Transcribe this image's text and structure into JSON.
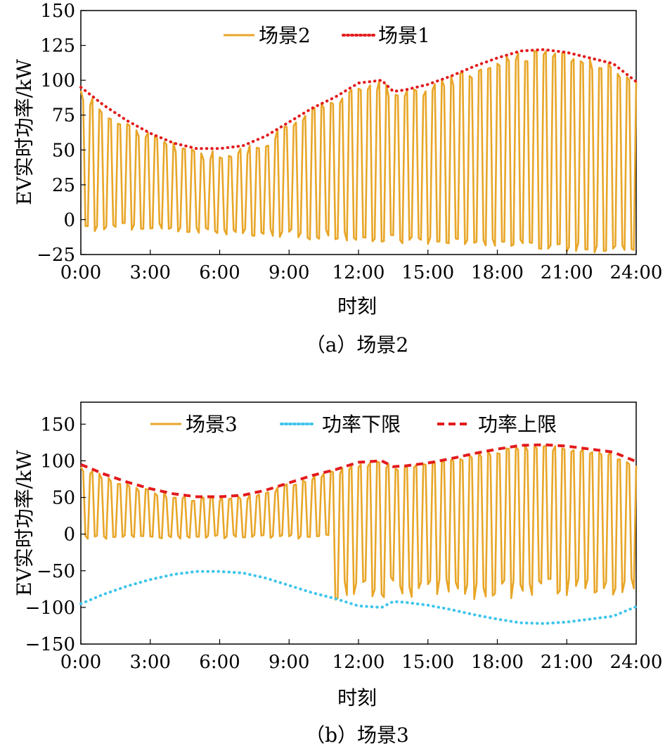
{
  "colors": {
    "orange": "#E8A628",
    "red": "#E31A1C",
    "cyan": "#3FC5EA",
    "axis": "#000000"
  },
  "chart_data": [
    {
      "type": "line",
      "caption": "（a）场景2",
      "xlabel": "时刻",
      "ylabel": "EV实时功率/kW",
      "xticks": [
        "0:00",
        "3:00",
        "6:00",
        "9:00",
        "12:00",
        "15:00",
        "18:00",
        "21:00",
        "24:00"
      ],
      "yticks": [
        "150",
        "125",
        "100",
        "75",
        "50",
        "25",
        "0",
        "−25"
      ],
      "ylim": [
        -25,
        150
      ],
      "xlim": [
        0,
        24
      ],
      "grid": false,
      "legend_position": "top",
      "series": [
        {
          "name": "场景2",
          "style": "solid",
          "color": "#E8A628",
          "description_kind": "oscillating",
          "envelope_upper": "场景1",
          "envelope_lower": [
            0,
            -2,
            -5,
            -5,
            -5,
            -5,
            -5,
            -8,
            -10,
            -12,
            -15,
            -20,
            -25
          ]
        },
        {
          "name": "场景1",
          "style": "dotted",
          "color": "#E31A1C",
          "x": [
            0,
            1,
            2,
            3,
            4,
            5,
            6,
            7,
            8,
            9,
            10,
            11,
            12,
            13,
            13.5,
            14,
            15,
            16,
            17,
            18,
            19,
            20,
            21,
            22,
            23,
            24
          ],
          "y": [
            95,
            82,
            71,
            62,
            55,
            51,
            51,
            53,
            60,
            70,
            80,
            88,
            98,
            100,
            92,
            93,
            97,
            103,
            110,
            116,
            121,
            122,
            120,
            116,
            112,
            99
          ]
        }
      ]
    },
    {
      "type": "line",
      "caption": "（b）场景3",
      "xlabel": "时刻",
      "ylabel": "EV实时功率/kW",
      "xticks": [
        "0:00",
        "3:00",
        "6:00",
        "9:00",
        "12:00",
        "15:00",
        "18:00",
        "21:00",
        "24:00"
      ],
      "yticks": [
        "150",
        "100",
        "50",
        "0",
        "−50",
        "−100",
        "−150"
      ],
      "ylim": [
        -150,
        180
      ],
      "xlim": [
        0,
        24
      ],
      "grid": false,
      "legend_position": "top",
      "series": [
        {
          "name": "场景3",
          "style": "solid",
          "color": "#E8A628",
          "description_kind": "oscillating"
        },
        {
          "name": "功率下限",
          "style": "dotted",
          "color": "#3FC5EA",
          "x": [
            0,
            1,
            2,
            3,
            4,
            5,
            6,
            7,
            8,
            9,
            10,
            11,
            12,
            13,
            13.5,
            14,
            15,
            16,
            17,
            18,
            19,
            20,
            21,
            22,
            23,
            24
          ],
          "y": [
            -95,
            -82,
            -71,
            -62,
            -55,
            -51,
            -51,
            -53,
            -60,
            -70,
            -80,
            -88,
            -98,
            -100,
            -92,
            -93,
            -97,
            -103,
            -110,
            -116,
            -121,
            -122,
            -120,
            -116,
            -112,
            -99
          ]
        },
        {
          "name": "功率上限",
          "style": "dashed",
          "color": "#E31A1C",
          "x": [
            0,
            1,
            2,
            3,
            4,
            5,
            6,
            7,
            8,
            9,
            10,
            11,
            12,
            13,
            13.5,
            14,
            15,
            16,
            17,
            18,
            19,
            20,
            21,
            22,
            23,
            24
          ],
          "y": [
            95,
            82,
            71,
            62,
            55,
            51,
            51,
            53,
            60,
            70,
            80,
            88,
            98,
            100,
            92,
            93,
            97,
            103,
            110,
            116,
            121,
            122,
            120,
            116,
            112,
            99
          ]
        }
      ]
    }
  ]
}
